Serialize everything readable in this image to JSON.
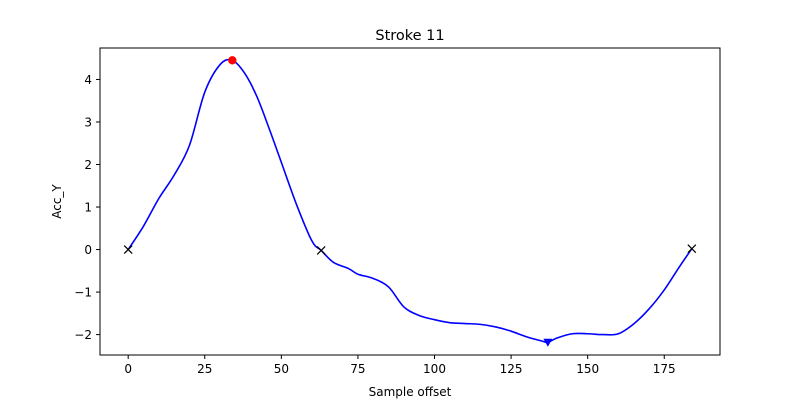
{
  "chart_data": {
    "type": "line",
    "title": "Stroke 11",
    "xlabel": "Sample offset",
    "ylabel": "Acc_Y",
    "xlim": [
      -9.2,
      193.2
    ],
    "ylim": [
      -2.48,
      4.74
    ],
    "xticks": [
      0,
      25,
      50,
      75,
      100,
      125,
      150,
      175
    ],
    "yticks": [
      -2,
      -1,
      0,
      1,
      2,
      3,
      4
    ],
    "grid": false,
    "colors": {
      "line": "#0000ff",
      "peak": "#ff0000",
      "trough": "#0000ff",
      "zero_marker": "#000000"
    },
    "series": [
      {
        "x": [
          0,
          5,
          10,
          15,
          20,
          25,
          30,
          34,
          38,
          42,
          46,
          50,
          55,
          60,
          63,
          67,
          72,
          75,
          80,
          85,
          90,
          95,
          100,
          105,
          110,
          115,
          120,
          125,
          130,
          135,
          137,
          140,
          145,
          150,
          155,
          160,
          165,
          170,
          175,
          180,
          184
        ],
        "y": [
          0.0,
          0.55,
          1.2,
          1.75,
          2.45,
          3.7,
          4.35,
          4.45,
          4.15,
          3.6,
          2.85,
          2.05,
          1.05,
          0.2,
          -0.02,
          -0.3,
          -0.45,
          -0.58,
          -0.68,
          -0.88,
          -1.35,
          -1.55,
          -1.65,
          -1.72,
          -1.74,
          -1.76,
          -1.82,
          -1.92,
          -2.05,
          -2.15,
          -2.18,
          -2.08,
          -1.98,
          -1.98,
          -2.0,
          -1.98,
          -1.75,
          -1.4,
          -0.95,
          -0.4,
          0.02
        ]
      }
    ],
    "markers": {
      "peak": {
        "x": 34,
        "y": 4.45,
        "shape": "circle"
      },
      "trough": {
        "x": 137,
        "y": -2.18,
        "shape": "triangle-down"
      },
      "zero_crossings": [
        {
          "x": 0,
          "y": 0.0
        },
        {
          "x": 63,
          "y": -0.02
        },
        {
          "x": 184,
          "y": 0.02
        }
      ]
    }
  }
}
